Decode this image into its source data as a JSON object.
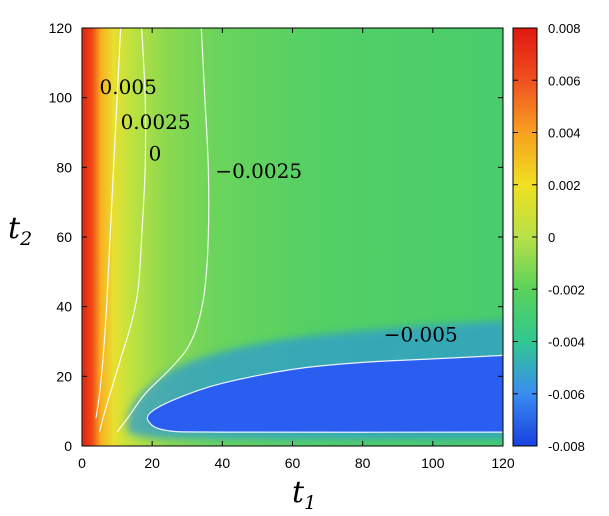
{
  "chart_data": {
    "type": "heatmap",
    "title": "",
    "xlabel": "t",
    "xlabel_sub": "1",
    "ylabel": "t",
    "ylabel_sub": "2",
    "xlim": [
      0,
      120
    ],
    "ylim": [
      0,
      120
    ],
    "x_ticks": [
      "0",
      "20",
      "40",
      "60",
      "80",
      "100",
      "120"
    ],
    "y_ticks": [
      "0",
      "20",
      "40",
      "60",
      "80",
      "100",
      "120"
    ],
    "colorbar": {
      "min": -0.008,
      "max": 0.008,
      "ticks": [
        "0.008",
        "0.006",
        "0.004",
        "0.002",
        "0",
        "-0.002",
        "-0.004",
        "-0.006",
        "-0.008"
      ],
      "colors": [
        "#1a40e0",
        "#3a8cf0",
        "#30c890",
        "#5ad25a",
        "#b8e048",
        "#f0e020",
        "#f8a020",
        "#f05020",
        "#e01810"
      ]
    },
    "contour_levels": [
      0.005,
      0.0025,
      0,
      -0.0025,
      -0.005
    ],
    "contour_labels": [
      {
        "text": "0.005",
        "t1": 5,
        "t2": 101
      },
      {
        "text": "0.0025",
        "t1": 11,
        "t2": 91
      },
      {
        "text": "0",
        "t1": 19,
        "t2": 82
      },
      {
        "text": "−0.0025",
        "t1": 38,
        "t2": 77
      },
      {
        "text": "−0.005",
        "t1": 86,
        "t2": 30
      }
    ],
    "contour_lines": [
      {
        "level": -0.0025,
        "points": [
          [
            34,
            120
          ],
          [
            35,
            100
          ],
          [
            36,
            80
          ],
          [
            36,
            60
          ],
          [
            35,
            45
          ],
          [
            33,
            35
          ],
          [
            30,
            28
          ],
          [
            25,
            22
          ],
          [
            18,
            15
          ],
          [
            13,
            8
          ],
          [
            10,
            4
          ]
        ]
      },
      {
        "level": 0,
        "points": [
          [
            17,
            120
          ],
          [
            18,
            100
          ],
          [
            18,
            80
          ],
          [
            17,
            60
          ],
          [
            16,
            45
          ],
          [
            14,
            35
          ],
          [
            11,
            25
          ],
          [
            8,
            15
          ],
          [
            6,
            8
          ],
          [
            5,
            4
          ]
        ]
      },
      {
        "level": 0.0025,
        "points": [
          [
            11,
            120
          ],
          [
            10,
            100
          ],
          [
            9,
            80
          ],
          [
            8,
            60
          ],
          [
            7,
            40
          ],
          [
            6,
            25
          ],
          [
            5,
            15
          ],
          [
            4,
            8
          ]
        ]
      },
      {
        "level": -0.005,
        "points": [
          [
            120,
            26
          ],
          [
            100,
            25
          ],
          [
            80,
            24
          ],
          [
            60,
            22
          ],
          [
            40,
            18
          ],
          [
            28,
            14
          ],
          [
            20,
            10
          ],
          [
            19,
            7
          ],
          [
            24,
            4.5
          ],
          [
            40,
            4
          ],
          [
            120,
            4
          ]
        ]
      }
    ]
  }
}
